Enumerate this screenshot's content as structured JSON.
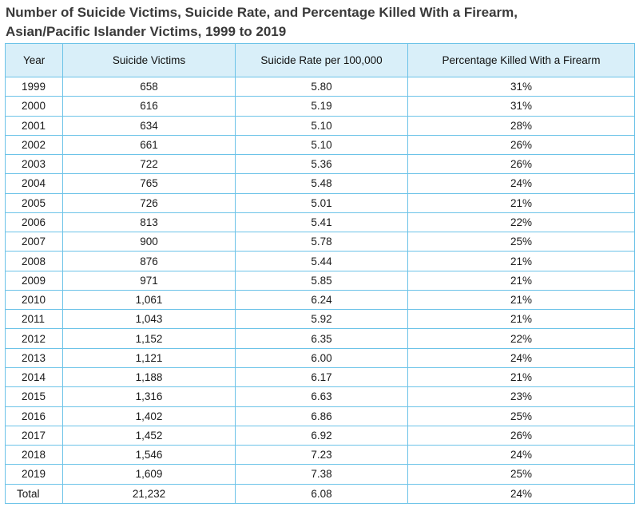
{
  "chart_data": {
    "type": "table",
    "title_lines": [
      "Number of Suicide Victims, Suicide Rate, and Percentage Killed With a Firearm,",
      "Asian/Pacific Islander Victims, 1999 to 2019"
    ],
    "columns": [
      "Year",
      "Suicide Victims",
      "Suicide Rate per 100,000",
      "Percentage Killed With a Firearm"
    ],
    "rows": [
      [
        "1999",
        "658",
        "5.80",
        "31%"
      ],
      [
        "2000",
        "616",
        "5.19",
        "31%"
      ],
      [
        "2001",
        "634",
        "5.10",
        "28%"
      ],
      [
        "2002",
        "661",
        "5.10",
        "26%"
      ],
      [
        "2003",
        "722",
        "5.36",
        "26%"
      ],
      [
        "2004",
        "765",
        "5.48",
        "24%"
      ],
      [
        "2005",
        "726",
        "5.01",
        "21%"
      ],
      [
        "2006",
        "813",
        "5.41",
        "22%"
      ],
      [
        "2007",
        "900",
        "5.78",
        "25%"
      ],
      [
        "2008",
        "876",
        "5.44",
        "21%"
      ],
      [
        "2009",
        "971",
        "5.85",
        "21%"
      ],
      [
        "2010",
        "1,061",
        "6.24",
        "21%"
      ],
      [
        "2011",
        "1,043",
        "5.92",
        "21%"
      ],
      [
        "2012",
        "1,152",
        "6.35",
        "22%"
      ],
      [
        "2013",
        "1,121",
        "6.00",
        "24%"
      ],
      [
        "2014",
        "1,188",
        "6.17",
        "21%"
      ],
      [
        "2015",
        "1,316",
        "6.63",
        "23%"
      ],
      [
        "2016",
        "1,402",
        "6.86",
        "25%"
      ],
      [
        "2017",
        "1,452",
        "6.92",
        "26%"
      ],
      [
        "2018",
        "1,546",
        "7.23",
        "24%"
      ],
      [
        "2019",
        "1,609",
        "7.38",
        "25%"
      ]
    ],
    "total": [
      "Total",
      "21,232",
      "6.08",
      "24%"
    ]
  },
  "colors": {
    "header_bg": "#d9eff9",
    "border": "#6cc3e8",
    "title": "#3a3a3a"
  }
}
